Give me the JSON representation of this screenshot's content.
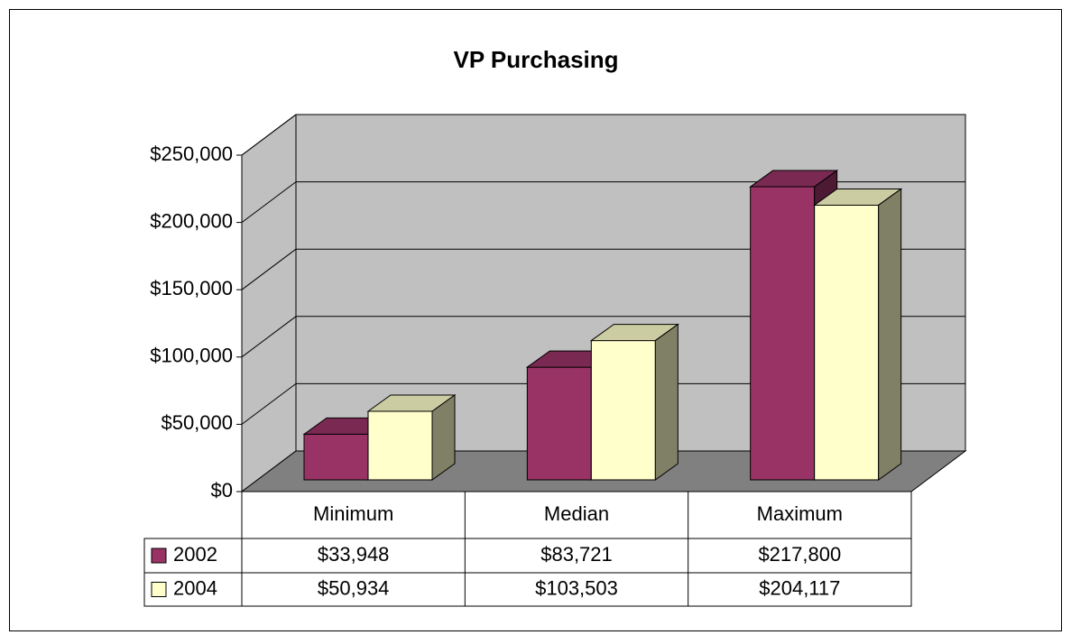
{
  "chart_data": {
    "type": "bar3d",
    "title": "VP Purchasing",
    "categories": [
      "Minimum",
      "Median",
      "Maximum"
    ],
    "series": [
      {
        "name": "2002",
        "color": "#993366",
        "values": [
          33948,
          83721,
          217800
        ],
        "value_labels": [
          "$33,948",
          "$83,721",
          "$217,800"
        ]
      },
      {
        "name": "2004",
        "color": "#ffffcc",
        "values": [
          50934,
          103503,
          204117
        ],
        "value_labels": [
          "$50,934",
          "$103,503",
          "$204,117"
        ]
      }
    ],
    "ylim": [
      0,
      250000
    ],
    "yticks": [
      {
        "value": 0,
        "label": "$0"
      },
      {
        "value": 50000,
        "label": "$50,000"
      },
      {
        "value": 100000,
        "label": "$100,000"
      },
      {
        "value": 150000,
        "label": "$150,000"
      },
      {
        "value": 200000,
        "label": "$200,000"
      },
      {
        "value": 250000,
        "label": "$250,000"
      }
    ],
    "grid": true,
    "data_table": true
  }
}
